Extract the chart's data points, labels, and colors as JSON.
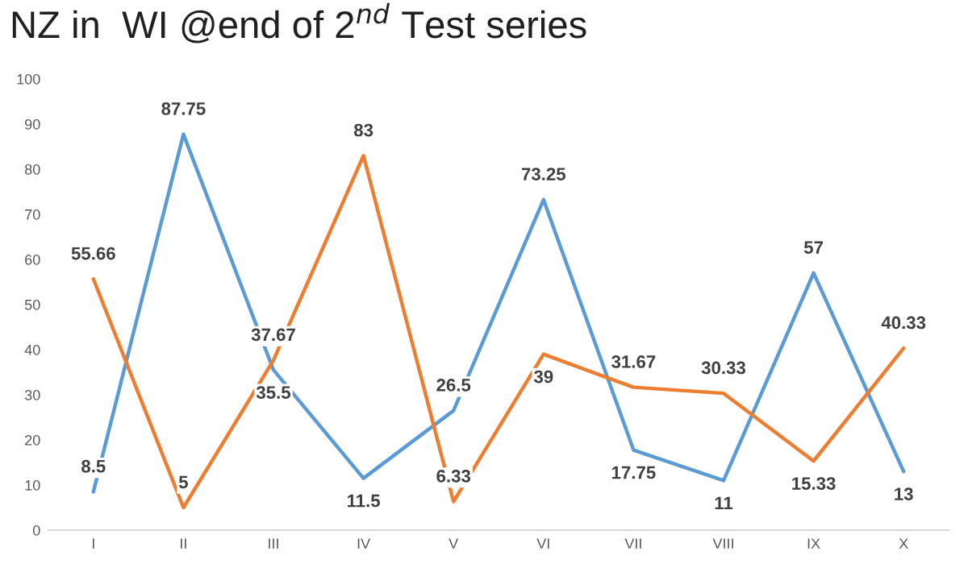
{
  "chart_data": {
    "type": "line",
    "title": "NZ in  WI @end of 2$^{nd}$ Test series",
    "categories": [
      "I",
      "II",
      "III",
      "IV",
      "V",
      "VI",
      "VII",
      "VIII",
      "IX",
      "X"
    ],
    "series": [
      {
        "color": "#5b9bd5",
        "values": [
          8.5,
          87.75,
          35.5,
          11.5,
          26.5,
          73.25,
          17.75,
          11,
          57,
          13
        ]
      },
      {
        "color": "#ed7d31",
        "values": [
          55.66,
          5,
          37.67,
          83,
          6.33,
          39,
          31.67,
          30.33,
          15.33,
          40.33
        ]
      }
    ],
    "ylim": [
      0,
      100
    ],
    "yticks": [
      0,
      10,
      20,
      30,
      40,
      50,
      60,
      70,
      80,
      90,
      100
    ],
    "grid": false,
    "legend": false,
    "marker": "none",
    "line_style": "solid",
    "data_labels": true
  }
}
